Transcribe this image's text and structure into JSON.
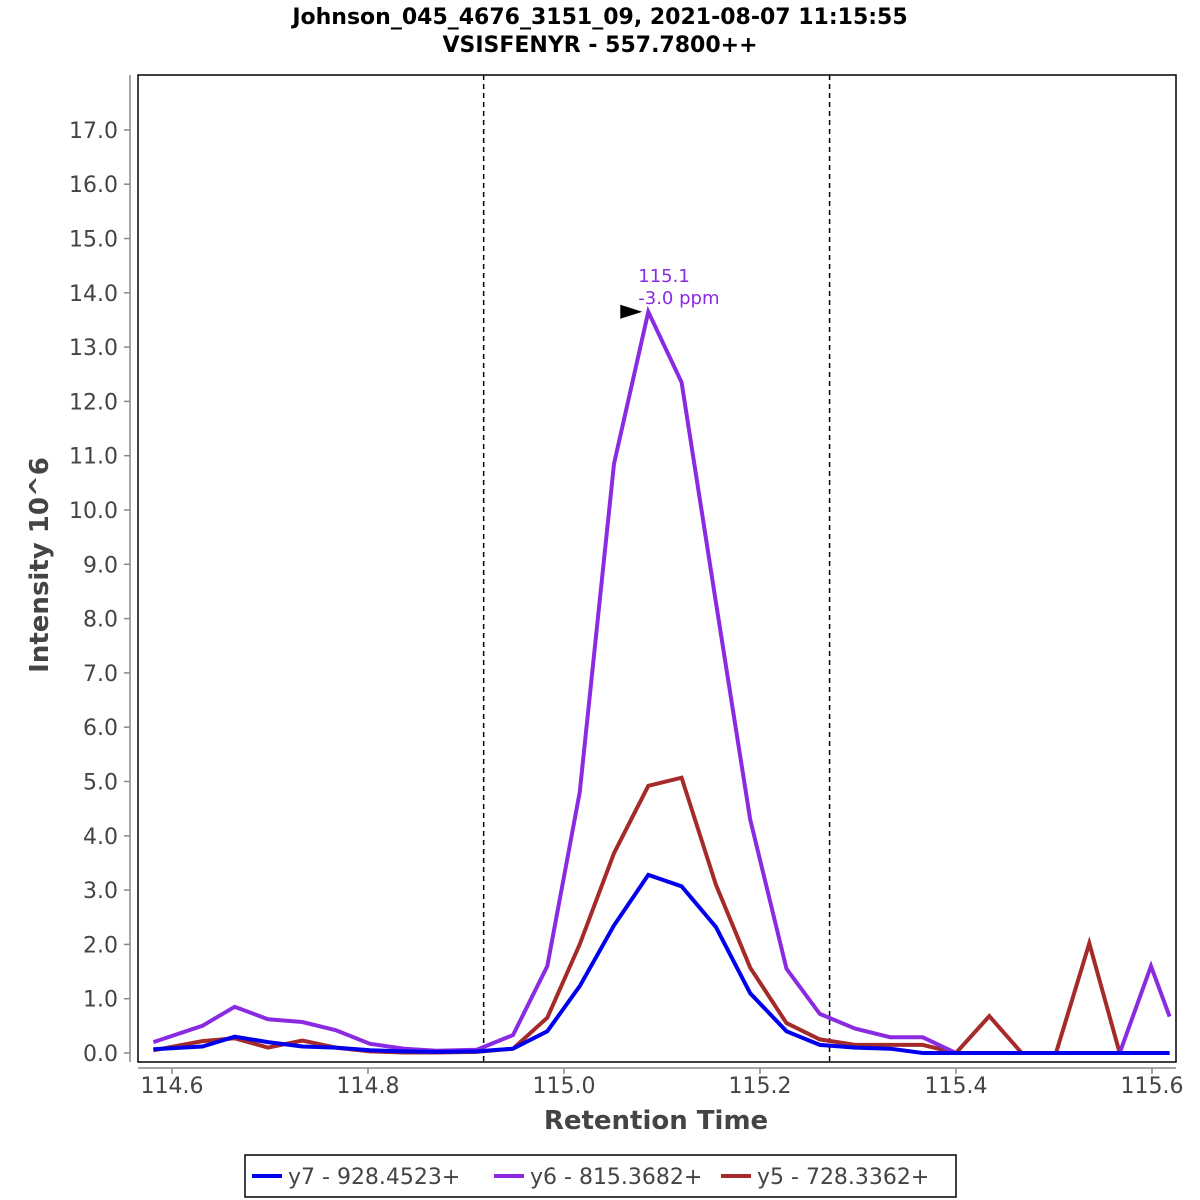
{
  "chart_data": {
    "type": "line",
    "title": "Johnson_045_4676_3151_09, 2021-08-07 11:15:55",
    "subtitle": "VSISFENYR - 557.7800++",
    "xlabel": "Retention Time",
    "ylabel": "Intensity 10^6",
    "xlim": [
      114.582,
      115.625
    ],
    "ylim": [
      0,
      18.0
    ],
    "xticks": [
      "114.6",
      "114.8",
      "115.0",
      "115.2",
      "115.4",
      "115.6"
    ],
    "xtick_values": [
      114.6,
      114.8,
      115.0,
      115.2,
      115.4,
      115.6
    ],
    "yticks": [
      "0.0",
      "1.0",
      "2.0",
      "3.0",
      "4.0",
      "5.0",
      "6.0",
      "7.0",
      "8.0",
      "9.0",
      "10.0",
      "11.0",
      "12.0",
      "13.0",
      "14.0",
      "15.0",
      "16.0",
      "17.0"
    ],
    "ytick_values": [
      0,
      1,
      2,
      3,
      4,
      5,
      6,
      7,
      8,
      9,
      10,
      11,
      12,
      13,
      14,
      15,
      16,
      17
    ],
    "grid": false,
    "legend_position": "bottom-center",
    "integration_bounds": [
      114.918,
      115.271
    ],
    "x": [
      114.581,
      114.631,
      114.664,
      114.698,
      114.733,
      114.767,
      114.802,
      114.837,
      114.87,
      114.911,
      114.948,
      114.983,
      115.016,
      115.051,
      115.086,
      115.12,
      115.155,
      115.19,
      115.227,
      115.261,
      115.297,
      115.333,
      115.366,
      115.4,
      115.434,
      115.467,
      115.502,
      115.536,
      115.567,
      115.599,
      115.618
    ],
    "series": [
      {
        "name": "y7 - 928.4523+",
        "color": "#0000ee",
        "values": [
          0.07,
          0.12,
          0.3,
          0.2,
          0.12,
          0.1,
          0.05,
          0.03,
          0.02,
          0.03,
          0.08,
          0.4,
          1.23,
          2.35,
          3.28,
          3.07,
          2.32,
          1.1,
          0.4,
          0.15,
          0.1,
          0.08,
          0,
          0,
          0,
          0,
          0,
          0,
          0,
          0,
          0
        ]
      },
      {
        "name": "y6 - 815.3682+",
        "color": "#8a2be2",
        "values": [
          0.2,
          0.5,
          0.85,
          0.62,
          0.57,
          0.42,
          0.17,
          0.08,
          0.04,
          0.06,
          0.33,
          1.6,
          4.8,
          10.85,
          13.65,
          12.35,
          8.3,
          4.3,
          1.55,
          0.72,
          0.45,
          0.29,
          0.29,
          0,
          0,
          0,
          0,
          0,
          0,
          1.6,
          0.67
        ]
      },
      {
        "name": "y5 - 728.3362+",
        "color": "#a52a2a",
        "values": [
          0.05,
          0.22,
          0.27,
          0.1,
          0.23,
          0.1,
          0.03,
          0.01,
          0.01,
          0.02,
          0.08,
          0.65,
          2.0,
          3.68,
          4.92,
          5.07,
          3.1,
          1.57,
          0.55,
          0.25,
          0.15,
          0.15,
          0.15,
          0,
          0.68,
          0,
          0,
          2.02,
          0,
          0,
          0
        ]
      }
    ],
    "annotation": {
      "x": 115.086,
      "y": 13.65,
      "line1": "115.1",
      "line2": "-3.0 ppm",
      "color": "#8a2be2"
    }
  }
}
